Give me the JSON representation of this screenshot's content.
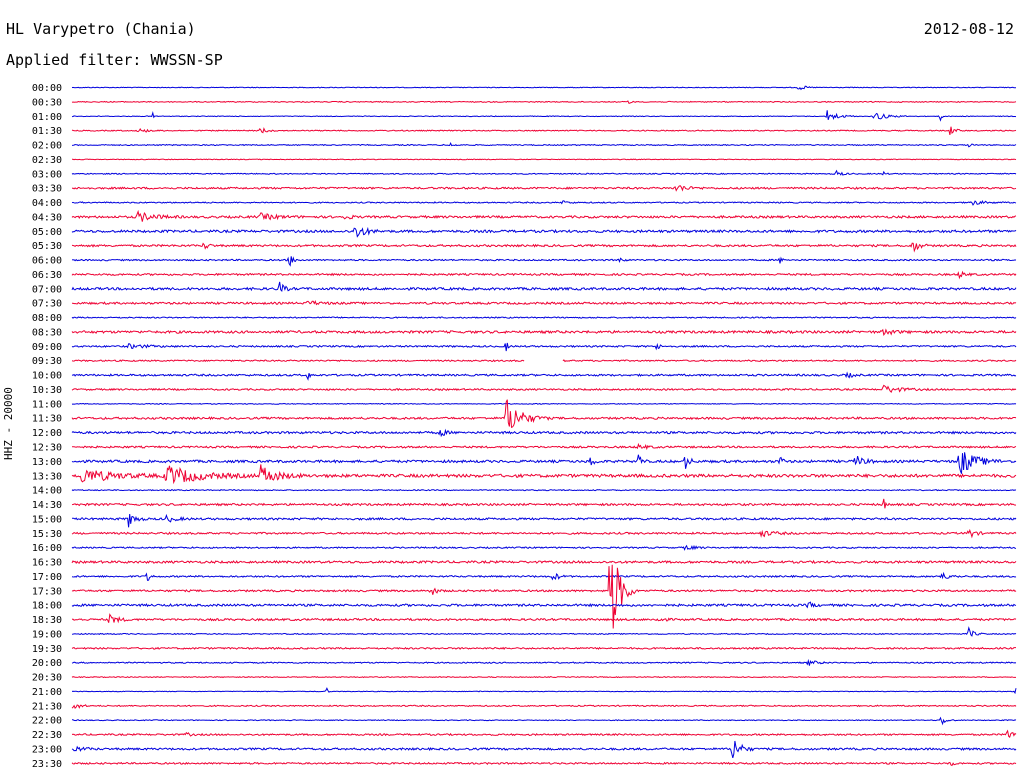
{
  "header": {
    "station": "HL Varypetro (Chania)",
    "date": "2012-08-12",
    "filter": "Applied filter: WWSSN-SP",
    "channel": "HHZ - 20000"
  },
  "colors": {
    "even_row": "#0000dd",
    "odd_row": "#ee0033"
  },
  "rows": [
    {
      "time": "00:00",
      "noise": 0.35,
      "events": [
        [
          0.77,
          3,
          12
        ]
      ]
    },
    {
      "time": "00:30",
      "noise": 0.45,
      "events": [
        [
          0.59,
          3,
          3
        ]
      ]
    },
    {
      "time": "01:00",
      "noise": 0.35,
      "events": [
        [
          0.085,
          4,
          5
        ],
        [
          0.8,
          6,
          20
        ],
        [
          0.85,
          5,
          22
        ],
        [
          0.92,
          4,
          4
        ]
      ]
    },
    {
      "time": "01:30",
      "noise": 0.5,
      "events": [
        [
          0.07,
          2,
          20
        ],
        [
          0.2,
          4,
          10
        ],
        [
          0.93,
          5,
          10
        ]
      ]
    },
    {
      "time": "02:00",
      "noise": 0.5,
      "events": [
        [
          0.4,
          2,
          10
        ],
        [
          0.95,
          2,
          6
        ]
      ]
    },
    {
      "time": "02:30",
      "noise": 0.35,
      "events": []
    },
    {
      "time": "03:00",
      "noise": 0.5,
      "events": [
        [
          0.81,
          3,
          12
        ],
        [
          0.86,
          2,
          4
        ]
      ]
    },
    {
      "time": "03:30",
      "noise": 0.9,
      "events": [
        [
          0.64,
          4,
          20
        ]
      ]
    },
    {
      "time": "04:00",
      "noise": 0.6,
      "events": [
        [
          0.52,
          2,
          10
        ],
        [
          0.95,
          3,
          25
        ]
      ]
    },
    {
      "time": "04:30",
      "noise": 1.1,
      "events": [
        [
          0.07,
          5,
          30
        ],
        [
          0.2,
          3,
          30
        ],
        [
          0.29,
          4,
          8
        ]
      ]
    },
    {
      "time": "05:00",
      "noise": 1.2,
      "events": [
        [
          0.3,
          8,
          18
        ]
      ]
    },
    {
      "time": "05:30",
      "noise": 1.0,
      "events": [
        [
          0.14,
          4,
          8
        ],
        [
          0.89,
          7,
          12
        ]
      ]
    },
    {
      "time": "06:00",
      "noise": 0.7,
      "events": [
        [
          0.23,
          7,
          8
        ],
        [
          0.58,
          3,
          6
        ],
        [
          0.75,
          3,
          6
        ]
      ]
    },
    {
      "time": "06:30",
      "noise": 0.9,
      "events": [
        [
          0.94,
          3,
          12
        ]
      ]
    },
    {
      "time": "07:00",
      "noise": 1.2,
      "events": [
        [
          0.22,
          7,
          8
        ]
      ]
    },
    {
      "time": "07:30",
      "noise": 1.0,
      "events": [
        [
          0.25,
          2,
          25
        ]
      ]
    },
    {
      "time": "08:00",
      "noise": 0.6,
      "events": []
    },
    {
      "time": "08:30",
      "noise": 1.2,
      "events": [
        [
          0.86,
          3,
          18
        ]
      ]
    },
    {
      "time": "09:00",
      "noise": 0.8,
      "events": [
        [
          0.06,
          2,
          35
        ],
        [
          0.46,
          5,
          4
        ],
        [
          0.62,
          5,
          4
        ]
      ]
    },
    {
      "time": "09:30",
      "noise": 0.7,
      "gap": [
        0.48,
        0.52
      ],
      "events": [
        [
          0.52,
          2,
          3
        ]
      ]
    },
    {
      "time": "10:00",
      "noise": 0.9,
      "events": [
        [
          0.25,
          4,
          4
        ],
        [
          0.82,
          3,
          12
        ]
      ]
    },
    {
      "time": "10:30",
      "noise": 0.8,
      "events": [
        [
          0.86,
          4,
          30
        ]
      ]
    },
    {
      "time": "11:00",
      "noise": 0.4,
      "events": []
    },
    {
      "time": "11:30",
      "noise": 1.0,
      "events": [
        [
          0.46,
          20,
          28
        ]
      ]
    },
    {
      "time": "12:00",
      "noise": 1.1,
      "events": [
        [
          0.39,
          4,
          10
        ]
      ]
    },
    {
      "time": "12:30",
      "noise": 0.9,
      "events": [
        [
          0.6,
          2,
          20
        ]
      ]
    },
    {
      "time": "13:00",
      "noise": 1.2,
      "events": [
        [
          0.55,
          8,
          6
        ],
        [
          0.6,
          8,
          6
        ],
        [
          0.65,
          8,
          8
        ],
        [
          0.75,
          5,
          6
        ],
        [
          0.83,
          6,
          15
        ],
        [
          0.94,
          14,
          30
        ]
      ]
    },
    {
      "time": "13:30",
      "noise": 1.5,
      "events": [
        [
          0.01,
          7,
          60
        ],
        [
          0.1,
          10,
          60
        ],
        [
          0.2,
          10,
          30
        ]
      ]
    },
    {
      "time": "14:00",
      "noise": 0.5,
      "events": []
    },
    {
      "time": "14:30",
      "noise": 1.0,
      "events": [
        [
          0.86,
          6,
          4
        ]
      ]
    },
    {
      "time": "15:00",
      "noise": 1.0,
      "events": [
        [
          0.06,
          8,
          12
        ],
        [
          0.1,
          3,
          20
        ]
      ]
    },
    {
      "time": "15:30",
      "noise": 0.9,
      "events": [
        [
          0.73,
          3,
          25
        ],
        [
          0.95,
          5,
          12
        ]
      ]
    },
    {
      "time": "16:00",
      "noise": 0.7,
      "events": [
        [
          0.65,
          3,
          15
        ]
      ]
    },
    {
      "time": "16:30",
      "noise": 1.1,
      "events": []
    },
    {
      "time": "17:00",
      "noise": 0.8,
      "events": [
        [
          0.08,
          5,
          6
        ],
        [
          0.51,
          5,
          10
        ],
        [
          0.92,
          4,
          15
        ]
      ]
    },
    {
      "time": "17:30",
      "noise": 0.9,
      "events": [
        [
          0.38,
          5,
          10
        ],
        [
          0.57,
          60,
          18
        ]
      ]
    },
    {
      "time": "18:00",
      "noise": 1.1,
      "events": [
        [
          0.78,
          3,
          10
        ]
      ]
    },
    {
      "time": "18:30",
      "noise": 1.0,
      "events": [
        [
          0.04,
          5,
          15
        ],
        [
          0.62,
          3,
          10
        ]
      ]
    },
    {
      "time": "19:00",
      "noise": 0.5,
      "events": [
        [
          0.95,
          6,
          10
        ]
      ]
    },
    {
      "time": "19:30",
      "noise": 0.8,
      "events": []
    },
    {
      "time": "20:00",
      "noise": 0.6,
      "events": [
        [
          0.78,
          3,
          15
        ]
      ]
    },
    {
      "time": "20:30",
      "noise": 0.4,
      "events": []
    },
    {
      "time": "21:00",
      "noise": 0.3,
      "events": [
        [
          0.27,
          3,
          3
        ],
        [
          0.43,
          2,
          3
        ],
        [
          1.0,
          4,
          3
        ]
      ]
    },
    {
      "time": "21:30",
      "noise": 0.6,
      "events": [
        [
          0.0,
          6,
          12
        ]
      ]
    },
    {
      "time": "22:00",
      "noise": 0.4,
      "events": [
        [
          0.92,
          6,
          10
        ]
      ]
    },
    {
      "time": "22:30",
      "noise": 0.8,
      "events": [
        [
          0.12,
          2,
          10
        ],
        [
          0.99,
          8,
          8
        ]
      ]
    },
    {
      "time": "23:00",
      "noise": 1.0,
      "events": [
        [
          0.0,
          3,
          20
        ],
        [
          0.7,
          14,
          14
        ]
      ]
    },
    {
      "time": "23:30",
      "noise": 0.8,
      "events": [
        [
          0.93,
          3,
          6
        ]
      ]
    }
  ]
}
